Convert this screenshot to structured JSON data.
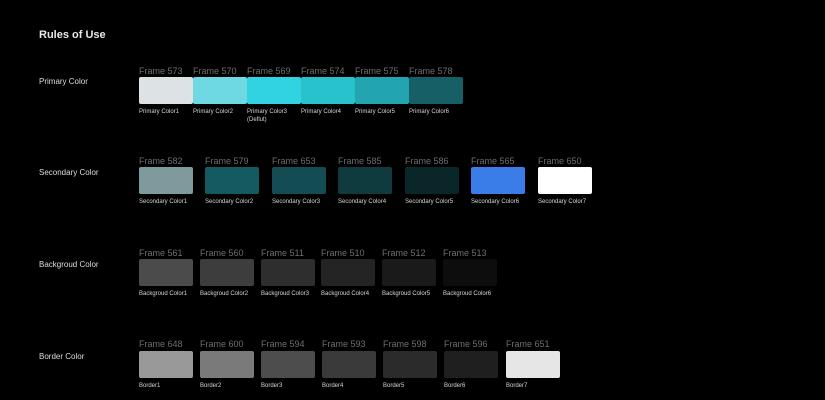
{
  "page_title": "Rules of Use",
  "sections": [
    {
      "label": "Primary Color",
      "swatches": [
        {
          "frame": "Frame 573",
          "color": "#dde3e4",
          "caption": "Primary Color1"
        },
        {
          "frame": "Frame 570",
          "color": "#6fd9e3",
          "caption": "Primary Color2"
        },
        {
          "frame": "Frame 569",
          "color": "#31d3e2",
          "caption": "Primary Color3",
          "caption2": "(Deflut)"
        },
        {
          "frame": "Frame 574",
          "color": "#27c2cc",
          "caption": "Primary Color4"
        },
        {
          "frame": "Frame 575",
          "color": "#22a5b0",
          "caption": "Primary Color5"
        },
        {
          "frame": "Frame 578",
          "color": "#175f66",
          "caption": "Primary Color6"
        }
      ]
    },
    {
      "label": "Secondary Color",
      "swatches": [
        {
          "frame": "Frame 582",
          "color": "#7f9a9c",
          "caption": "Secondary Color1"
        },
        {
          "frame": "Frame 579",
          "color": "#155a60",
          "caption": "Secondary Color2"
        },
        {
          "frame": "Frame 653",
          "color": "#134c52",
          "caption": "Secondary Color3"
        },
        {
          "frame": "Frame 585",
          "color": "#0f3a3e",
          "caption": "Secondary Color4"
        },
        {
          "frame": "Frame 586",
          "color": "#0b2629",
          "caption": "Secondary Color5"
        },
        {
          "frame": "Frame 565",
          "color": "#3a7de9",
          "caption": "Secondary Color6"
        },
        {
          "frame": "Frame 650",
          "color": "#ffffff",
          "caption": "Secondary Color7"
        }
      ]
    },
    {
      "label": "Backgroud Color",
      "swatches": [
        {
          "frame": "Frame 561",
          "color": "#4b4b4b",
          "caption": "Backgroud Color1"
        },
        {
          "frame": "Frame 560",
          "color": "#3d3d3d",
          "caption": "Backgroud Color2"
        },
        {
          "frame": "Frame 511",
          "color": "#2e2e2e",
          "caption": "Backgroud Color3"
        },
        {
          "frame": "Frame 510",
          "color": "#242424",
          "caption": "Backgroud Color4"
        },
        {
          "frame": "Frame 512",
          "color": "#1a1a1a",
          "caption": "Backgroud Color5"
        },
        {
          "frame": "Frame 513",
          "color": "#0d0d0d",
          "caption": "Backgroud Color6"
        }
      ]
    },
    {
      "label": "Border Color",
      "swatches": [
        {
          "frame": "Frame 648",
          "color": "#999999",
          "caption": "Border1"
        },
        {
          "frame": "Frame 600",
          "color": "#7a7a7a",
          "caption": "Border2"
        },
        {
          "frame": "Frame 594",
          "color": "#4d4d4d",
          "caption": "Border3"
        },
        {
          "frame": "Frame 593",
          "color": "#3a3a3a",
          "caption": "Border4"
        },
        {
          "frame": "Frame 598",
          "color": "#2b2b2b",
          "caption": "Border5"
        },
        {
          "frame": "Frame 596",
          "color": "#1f1f1f",
          "caption": "Border6"
        },
        {
          "frame": "Frame 651",
          "color": "#e6e6e6",
          "caption": "Border7"
        }
      ]
    }
  ]
}
